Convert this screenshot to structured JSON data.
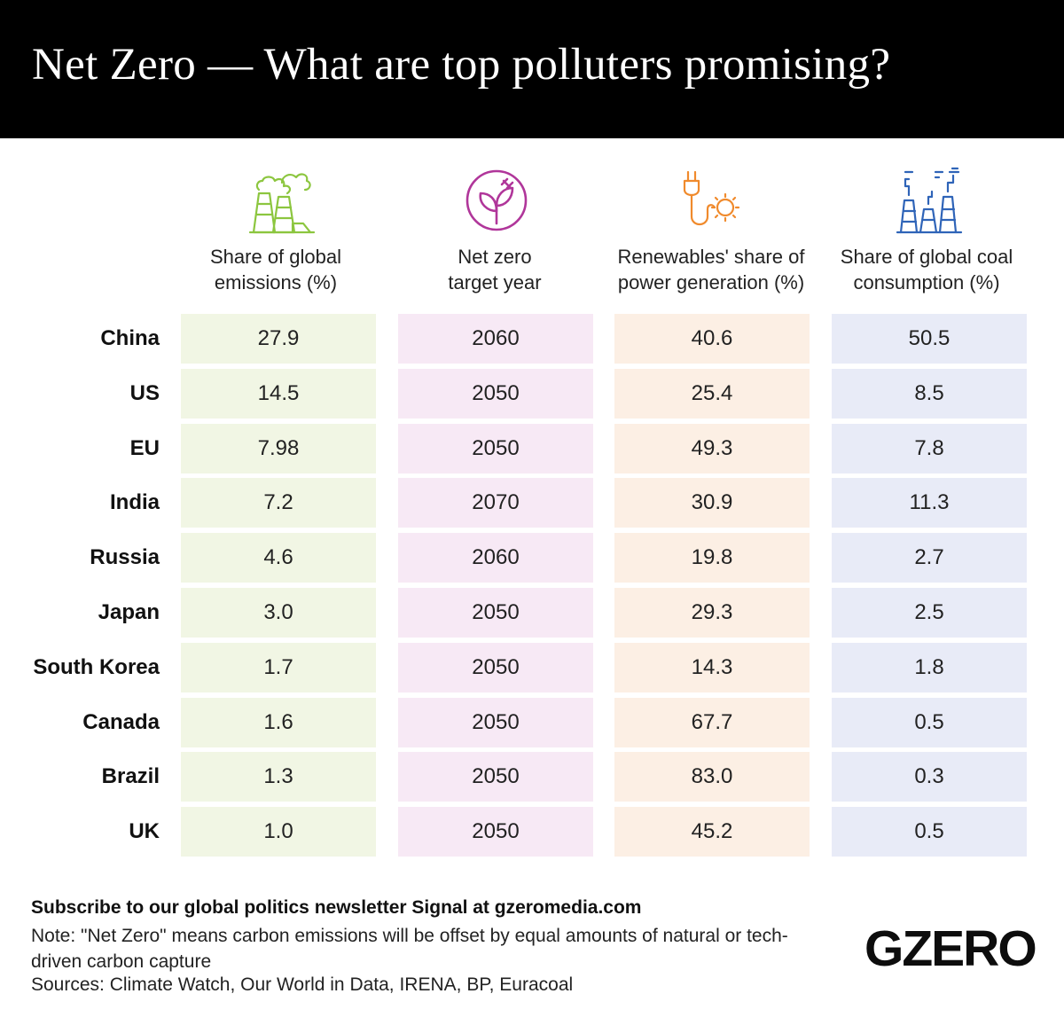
{
  "header": {
    "title": "Net Zero — What are top polluters promising?"
  },
  "colors": {
    "emissions_fill": "#f1f6e4",
    "target_fill": "#f7e9f5",
    "renewables_fill": "#fcefe4",
    "coal_fill": "#e8ebf7",
    "emissions_icon": "#8cc63f",
    "target_icon": "#b0369a",
    "renewables_icon": "#f08a2c",
    "coal_icon": "#2f64b8"
  },
  "chart_data": {
    "type": "table",
    "columns": [
      {
        "key": "emissions",
        "header_line1": "Share of global",
        "header_line2": "emissions (%)",
        "icon": "factory-emissions-icon"
      },
      {
        "key": "target",
        "header_line1": "Net zero",
        "header_line2": "target year",
        "icon": "leaf-plug-icon"
      },
      {
        "key": "renewables",
        "header_line1": "Renewables' share of",
        "header_line2": "power generation (%)",
        "icon": "plug-sun-icon"
      },
      {
        "key": "coal",
        "header_line1": "Share of global coal",
        "header_line2": "consumption (%)",
        "icon": "coal-plant-icon"
      }
    ],
    "rows": [
      {
        "country": "China",
        "emissions": "27.9",
        "target": "2060",
        "renewables": "40.6",
        "coal": "50.5"
      },
      {
        "country": "US",
        "emissions": "14.5",
        "target": "2050",
        "renewables": "25.4",
        "coal": "8.5"
      },
      {
        "country": "EU",
        "emissions": "7.98",
        "target": "2050",
        "renewables": "49.3",
        "coal": "7.8"
      },
      {
        "country": "India",
        "emissions": "7.2",
        "target": "2070",
        "renewables": "30.9",
        "coal": "11.3"
      },
      {
        "country": "Russia",
        "emissions": "4.6",
        "target": "2060",
        "renewables": "19.8",
        "coal": "2.7"
      },
      {
        "country": "Japan",
        "emissions": "3.0",
        "target": "2050",
        "renewables": "29.3",
        "coal": "2.5"
      },
      {
        "country": "South Korea",
        "emissions": "1.7",
        "target": "2050",
        "renewables": "14.3",
        "coal": "1.8"
      },
      {
        "country": "Canada",
        "emissions": "1.6",
        "target": "2050",
        "renewables": "67.7",
        "coal": "0.5"
      },
      {
        "country": "Brazil",
        "emissions": "1.3",
        "target": "2050",
        "renewables": "83.0",
        "coal": "0.3"
      },
      {
        "country": "UK",
        "emissions": "1.0",
        "target": "2050",
        "renewables": "45.2",
        "coal": "0.5"
      }
    ]
  },
  "footer": {
    "subscribe": "Subscribe to our global politics newsletter Signal at gzeromedia.com",
    "note": "Note: \"Net Zero\" means carbon emissions will be offset by equal amounts of natural or tech-driven carbon capture",
    "sources": "Sources: Climate Watch, Our World in Data, IRENA, BP, Euracoal"
  },
  "logo": {
    "text": "GZERO"
  }
}
